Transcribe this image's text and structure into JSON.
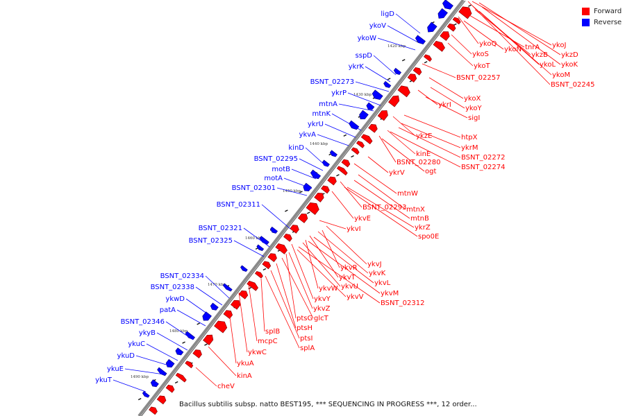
{
  "colors": {
    "forward": "#ff0000",
    "reverse": "#0000ff",
    "backbone": "#8a8a8a"
  },
  "legend": {
    "forward_label": "Forward",
    "reverse_label": "Reverse"
  },
  "caption": "Bacillus subtilis subsp. natto BEST195, *** SEQUENCING IN PROGRESS ***, 12 order...",
  "ticks": [
    "1420 kbp",
    "1430 kbp",
    "1440 kbp",
    "1450 kbp",
    "1460 kbp",
    "1470 kbp",
    "1480 kbp",
    "1490 kbp"
  ],
  "reverse_genes": [
    "ligD",
    "ykoV",
    "ykoW",
    "sspD",
    "ykrK",
    "BSNT_02273",
    "ykrP",
    "mtnA",
    "mtnK",
    "ykrU",
    "ykvA",
    "kinD",
    "BSNT_02295",
    "motB",
    "motA",
    "BSNT_02301",
    "BSNT_02311",
    "BSNT_02321",
    "BSNT_02325",
    "BSNT_02334",
    "BSNT_02338",
    "ykwD",
    "patA",
    "BSNT_02346",
    "ykyB",
    "ykuC",
    "ykuD",
    "ykuE",
    "ykuT"
  ],
  "forward_genes": [
    "ykoJ",
    "ykzD",
    "ykoQ",
    "ykoN",
    "tnrA",
    "ykzB",
    "ykoL",
    "ykoK",
    "ykoS",
    "ykoM",
    "ykoT",
    "BSNT_02245",
    "BSNT_02257",
    "ykoX",
    "ykrI",
    "ykoY",
    "sigI",
    "ykzE",
    "htpX",
    "ykrM",
    "kinE",
    "BSNT_02272",
    "BSNT_02280",
    "ogt",
    "BSNT_02274",
    "ykrV",
    "mtnW",
    "BSNT_02293",
    "mtnX",
    "ykvE",
    "mtnB",
    "ykrZ",
    "ykvI",
    "spo0E",
    "ykvJ",
    "ykvR",
    "ykvK",
    "ykvT",
    "ykvL",
    "ykvW",
    "ykvU",
    "ykvM",
    "ykvY",
    "ykvV",
    "BSNT_02312",
    "ykvZ",
    "ptsG",
    "glcT",
    "ptsH",
    "splB",
    "ptsI",
    "mcpC",
    "splA",
    "ykwC",
    "ykuA",
    "kinA",
    "cheV"
  ]
}
